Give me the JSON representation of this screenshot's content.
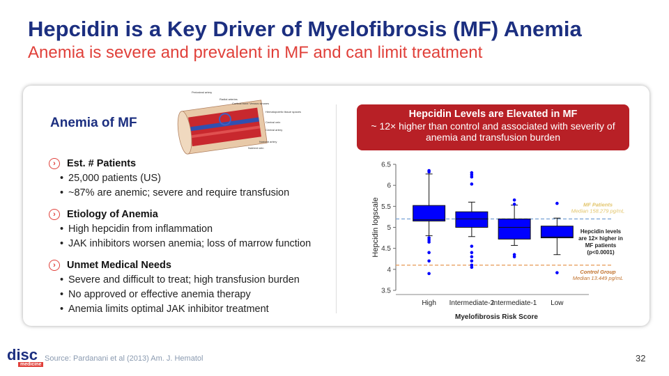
{
  "header": {
    "title": "Hepcidin is a Key Driver of Myelofibrosis (MF) Anemia",
    "subtitle": "Anemia is severe and prevalent in MF and can limit treatment"
  },
  "left": {
    "heading": "Anemia of MF",
    "figure_labels": [
      "Periosteal artery",
      "Radial arteries",
      "Cortical bone",
      "Venous sinuses",
      "Hematopoietic tissue spaces",
      "Central vein",
      "Central artery",
      "Nutrient artery",
      "Nutrient vein"
    ],
    "sections": [
      {
        "title": "Est. # Patients",
        "bullets": [
          "25,000 patients (US)",
          "~87% are anemic; severe and require transfusion"
        ]
      },
      {
        "title": "Etiology of Anemia",
        "bullets": [
          "High hepcidin from inflammation",
          "JAK inhibitors worsen anemia; loss of marrow function"
        ]
      },
      {
        "title": "Unmet Medical Needs",
        "bullets": [
          "Severe and difficult to treat; high transfusion burden",
          "No approved or effective anemia therapy",
          "Anemia limits optimal JAK inhibitor treatment"
        ]
      }
    ]
  },
  "callout": {
    "title": "Hepcidin Levels are Elevated in MF",
    "text": "~ 12× higher than control and associated with severity of anemia and transfusion burden"
  },
  "chart_data": {
    "type": "box",
    "xlabel": "Myelofibrosis Risk Score",
    "ylabel": "Hepcidin logscale",
    "categories": [
      "High",
      "Intermediate-2",
      "Intermediate-1",
      "Low"
    ],
    "color": "#0000ff",
    "ylim": [
      3.5,
      6.5
    ],
    "yticks": [
      3.5,
      4,
      4.5,
      5,
      5.5,
      6,
      6.5
    ],
    "boxes": [
      {
        "low": 4.8,
        "q1": 5.15,
        "median": 5.18,
        "q3": 5.52,
        "high": 6.27,
        "outliers": [
          6.35,
          6.32,
          4.75,
          4.7,
          4.65,
          4.4,
          4.2,
          3.9
        ]
      },
      {
        "low": 4.78,
        "q1": 5.0,
        "median": 5.2,
        "q3": 5.37,
        "high": 5.6,
        "outliers": [
          6.3,
          6.25,
          6.2,
          6.03,
          4.55,
          4.4,
          4.3,
          4.2,
          4.1,
          4.05
        ]
      },
      {
        "low": 4.57,
        "q1": 4.72,
        "median": 5.0,
        "q3": 5.2,
        "high": 5.53,
        "outliers": [
          5.65,
          5.55,
          4.35,
          4.3
        ]
      },
      {
        "low": 4.35,
        "q1": 4.75,
        "median": 4.77,
        "q3": 5.03,
        "high": 5.22,
        "outliers": [
          5.57,
          3.92
        ]
      }
    ],
    "reference_lines": [
      {
        "value": 5.2,
        "label": "MF Patients",
        "sublabel": "Median 158.279 pg/mL",
        "color": "#7fa8d8",
        "text_color": "#e2c46a"
      },
      {
        "value": 4.1,
        "label": "Control Group",
        "sublabel": "Median 13.449 pg/mL",
        "color": "#e8a060",
        "text_color": "#c0702a"
      }
    ],
    "annotation": "Hepcidin levels are 12× higher in MF patients (p<0.0001)"
  },
  "footer": {
    "logo": "disc",
    "logo_sub": "medicine",
    "source": "Source: Pardanani et al (2013) Am. J. Hematol",
    "page": "32"
  }
}
